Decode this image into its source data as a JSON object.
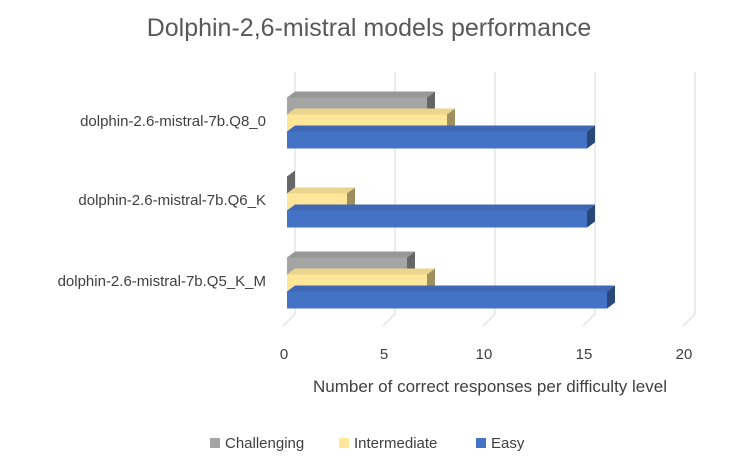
{
  "chart_data": {
    "type": "bar",
    "orientation": "horizontal",
    "style": "3d-clustered",
    "title": "Dolphin-2,6-mistral models performance",
    "xlabel": "Number of correct responses per difficulty level",
    "ylabel": "",
    "xlim": [
      0,
      20
    ],
    "xticks": [
      "0",
      "5",
      "10",
      "15",
      "20"
    ],
    "categories": [
      "dolphin-2.6-mistral-7b.Q8_0",
      "dolphin-2.6-mistral-7b.Q6_K",
      "dolphin-2.6-mistral-7b.Q5_K_M"
    ],
    "series": [
      {
        "name": "Challenging",
        "color": "#a5a5a5",
        "values": [
          7,
          0,
          6
        ]
      },
      {
        "name": "Intermediate",
        "color": "#ffe699",
        "values": [
          8,
          3,
          7
        ]
      },
      {
        "name": "Easy",
        "color": "#4472c4",
        "values": [
          15,
          15,
          16
        ]
      }
    ],
    "grid": true,
    "legend_position": "bottom"
  }
}
